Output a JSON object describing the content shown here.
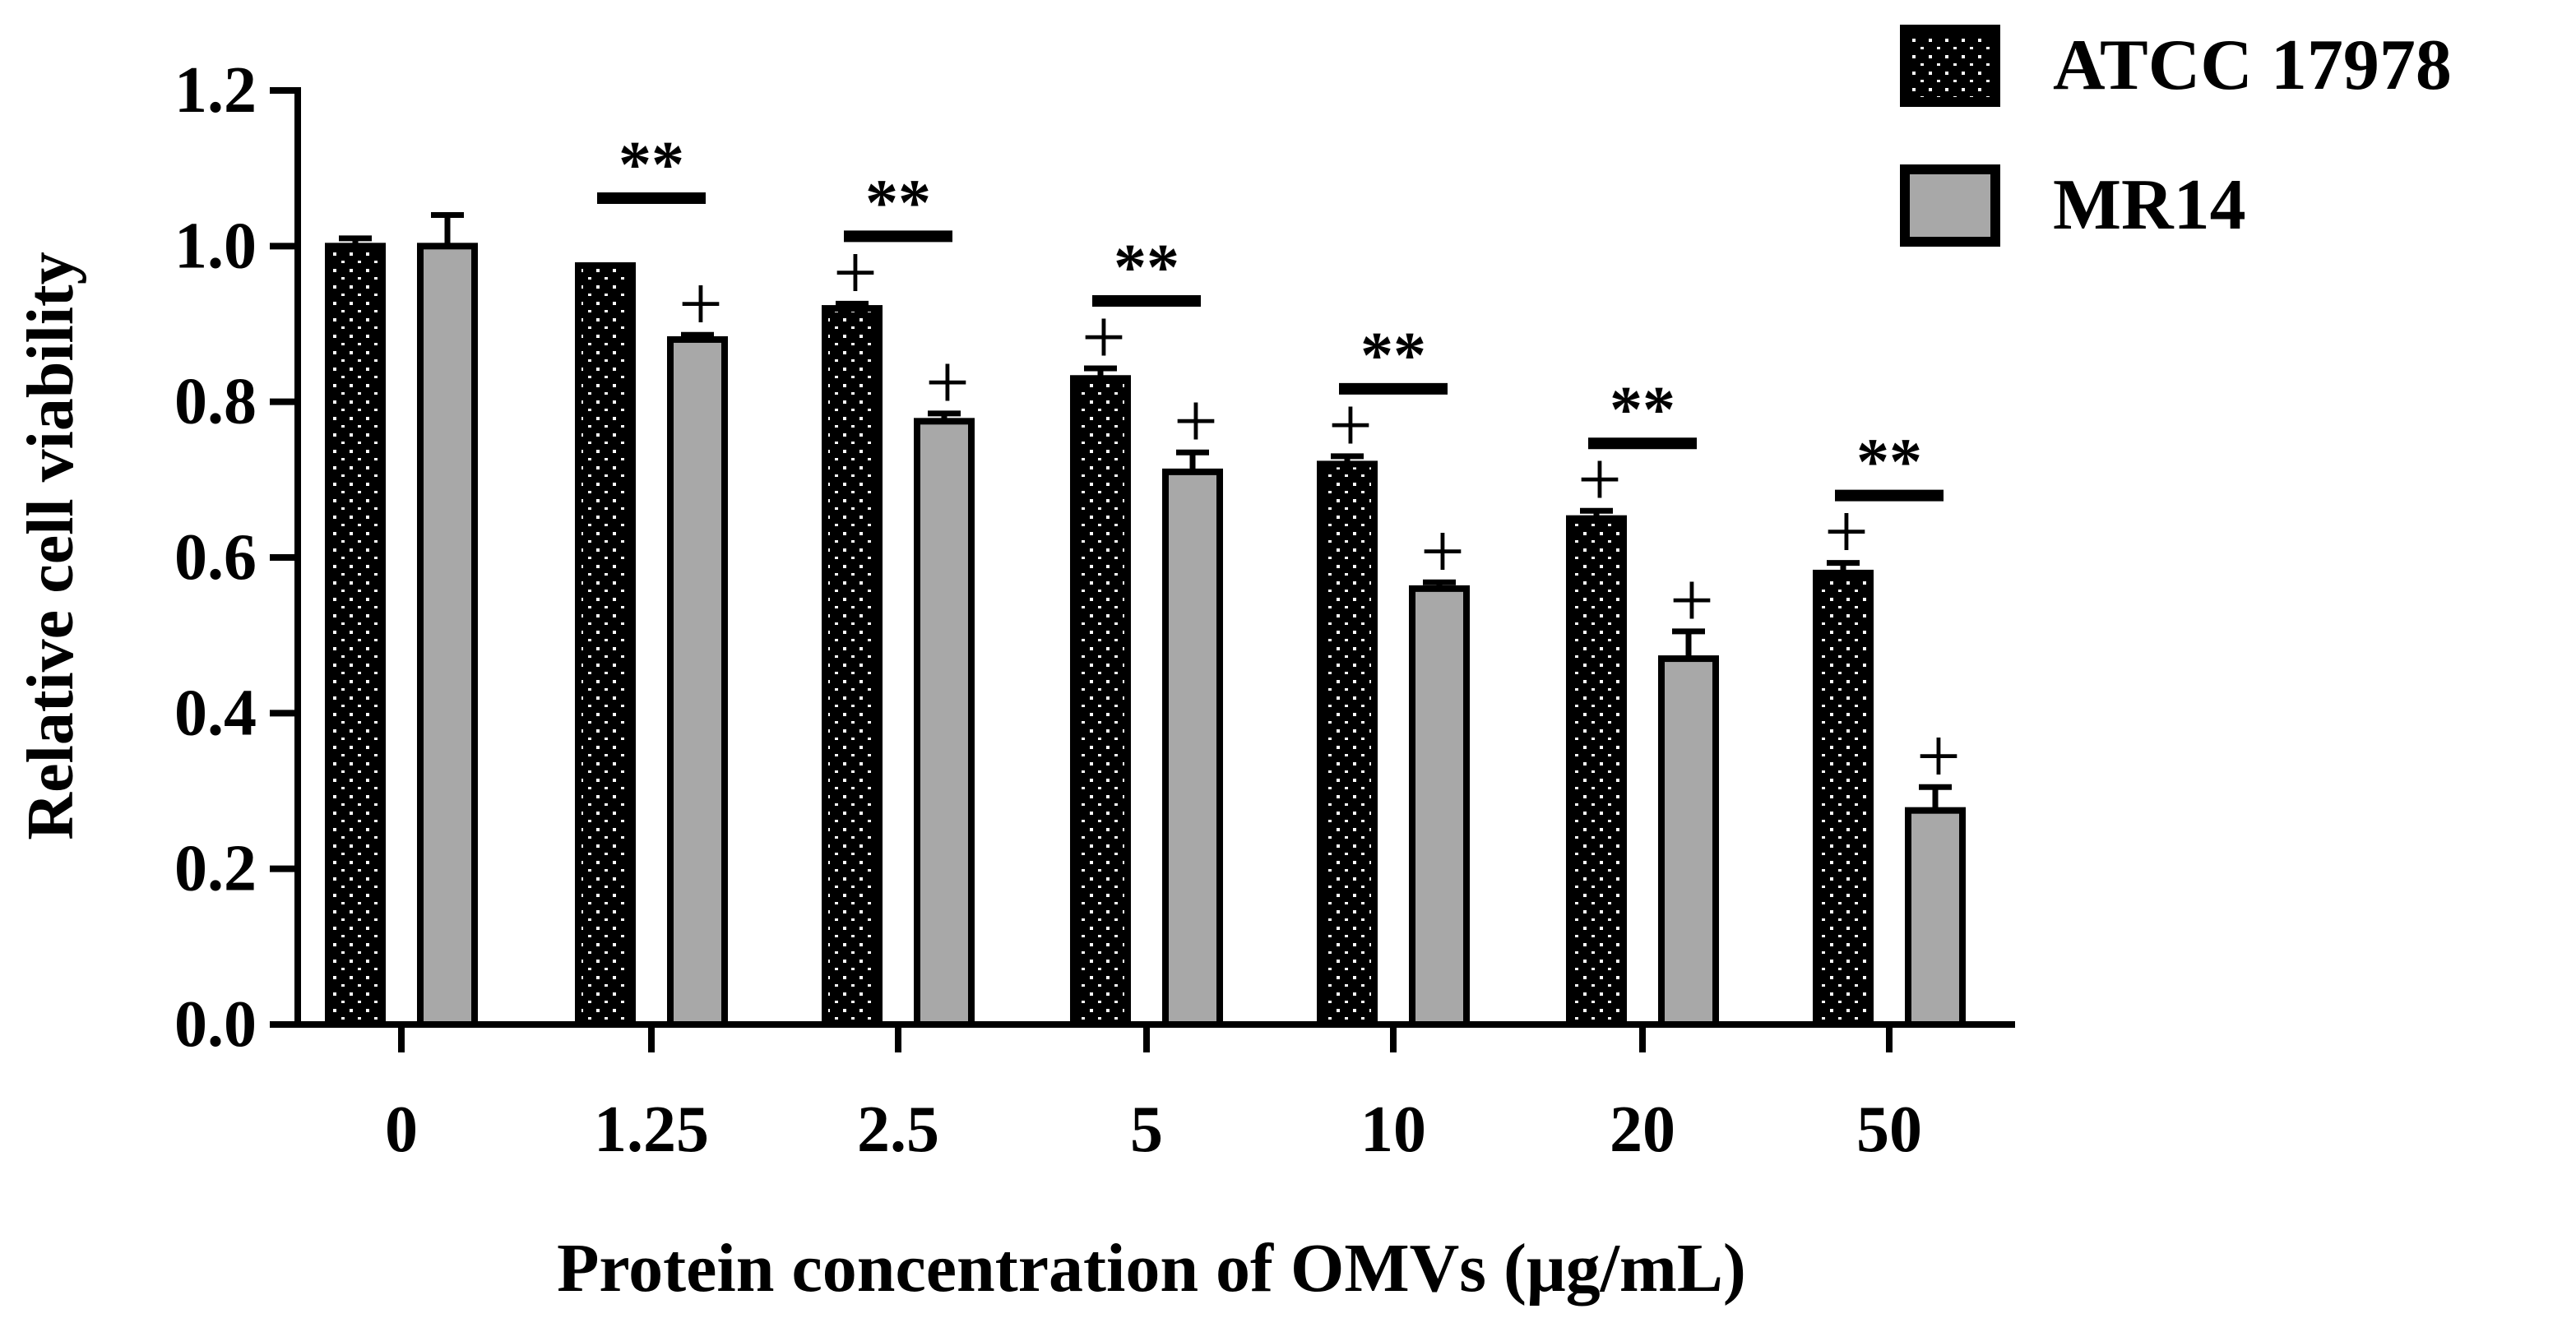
{
  "chart_data": {
    "type": "bar",
    "title": "",
    "xlabel": "Protein concentration of OMVs (μg/mL)",
    "ylabel": "Relative cell viability",
    "ylim": [
      0,
      1.2
    ],
    "yticks": [
      "0.0",
      "0.2",
      "0.4",
      "0.6",
      "0.8",
      "1.0",
      "1.2"
    ],
    "categories": [
      "0",
      "1.25",
      "2.5",
      "5",
      "10",
      "20",
      "50"
    ],
    "legend_position": "top-right",
    "series": [
      {
        "name": "ATCC 17978",
        "pattern": "dotted-black",
        "values": [
          1.0,
          0.975,
          0.92,
          0.83,
          0.72,
          0.65,
          0.58
        ],
        "errors": [
          0.01,
          0.0,
          0.006,
          0.013,
          0.01,
          0.01,
          0.013
        ],
        "markers": [
          "",
          "",
          "+",
          "+",
          "+",
          "+",
          "+"
        ]
      },
      {
        "name": "MR14",
        "pattern": "solid-gray",
        "color": "#a8a8a8",
        "values": [
          1.0,
          0.88,
          0.775,
          0.71,
          0.56,
          0.47,
          0.275
        ],
        "errors": [
          0.04,
          0.006,
          0.01,
          0.025,
          0.008,
          0.035,
          0.03
        ],
        "markers": [
          "",
          "+",
          "+",
          "+",
          "+",
          "+",
          "+"
        ]
      }
    ],
    "significance": [
      "",
      "**",
      "**",
      "**",
      "**",
      "**",
      "**"
    ]
  }
}
